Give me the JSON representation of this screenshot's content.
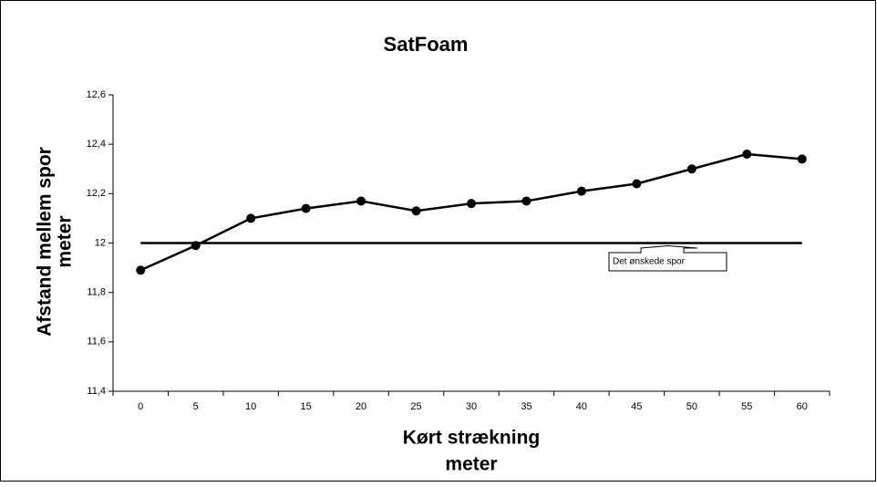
{
  "chart_data": {
    "type": "line",
    "title": "SatFoam",
    "y_label": [
      "Afstand mellem spor",
      "meter"
    ],
    "x_label": [
      "Kørt strækning",
      "meter"
    ],
    "categories": [
      "0",
      "5",
      "10",
      "15",
      "20",
      "25",
      "30",
      "35",
      "40",
      "45",
      "50",
      "55",
      "60"
    ],
    "series": [
      {
        "name": "SatFoam",
        "color": "#000000",
        "markers": true,
        "values": [
          11.89,
          11.99,
          12.1,
          12.14,
          12.17,
          12.13,
          12.16,
          12.17,
          12.21,
          12.24,
          12.3,
          12.36,
          12.34
        ]
      },
      {
        "name": "Det ønskede spor",
        "color": "#000000",
        "markers": false,
        "values": [
          12,
          12,
          12,
          12,
          12,
          12,
          12,
          12,
          12,
          12,
          12,
          12,
          12
        ]
      }
    ],
    "ylim": [
      11.4,
      12.6
    ],
    "yticks": [
      {
        "value": 11.4,
        "label": "11,4"
      },
      {
        "value": 11.6,
        "label": "11,6"
      },
      {
        "value": 11.8,
        "label": "11,8"
      },
      12,
      {
        "value": 12.2,
        "label": "12,2"
      },
      {
        "value": 12.4,
        "label": "12,4"
      },
      {
        "value": 12.6,
        "label": "12,6"
      }
    ],
    "grid": false
  }
}
